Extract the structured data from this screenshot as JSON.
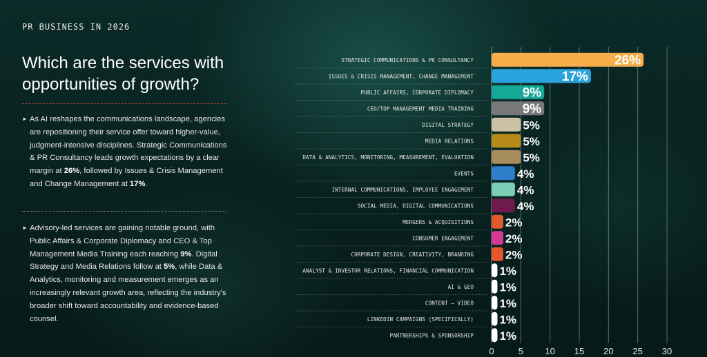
{
  "header": "PR BUSINESS IN 2026",
  "title": "Which are the services with opportunities of growth?",
  "paragraph1": {
    "t1": "As AI reshapes the communications landscape, agencies are repositioning their service offer toward higher-value, judgment-intensive disciplines. Strategic Communications & PR Consultancy leads growth expectations by a clear margin at ",
    "b1": "26%",
    "t2": ", followed by Issues & Crisis Management and Change Management at ",
    "b2": "17%",
    "t3": "."
  },
  "paragraph2": {
    "t1": "Advisory-led services are gaining notable ground, with Public Affairs & Corporate Diplomacy and CEO & Top Management Media Training each reaching ",
    "b1": "9%",
    "t2": ". Digital Strategy and Media Relations follow at ",
    "b2": "5%",
    "t3": ", while Data & Analytics, monitoring and measurement emerges as an increasingly relevant growth area, reflecting the industry's broader shift toward accountability and evidence-based counsel."
  },
  "chart_data": {
    "type": "bar",
    "orientation": "horizontal",
    "categories": [
      "STRATEGIC COMMUNICATIONS & PR CONSULTANCY",
      "ISSUES & CRISIS MANAGEMENT, CHANGE MANAGEMENT",
      "PUBLIC AFFAIRS, CORPORATE DIPLOMACY",
      "CEO/TOP MANAGEMENT MEDIA TRAINING",
      "DIGITAL STRATEGY",
      "MEDIA RELATIONS",
      "DATA & ANALYTICS, MONITORING, MEASUREMENT, EVALUATION",
      "EVENTS",
      "INTERNAL COMMUNICATIONS, EMPLOYEE ENGAGEMENT",
      "SOCIAL MEDIA, DIGITAL COMMUNICATIONS",
      "MERGERS & ACQUISITIONS",
      "CONSUMER ENGAGEMENT",
      "CORPORATE DESIGN, CREATIVITY, BRANDING",
      "ANALYST & INVESTOR RELATIONS, FINANCIAL COMMUNICATION",
      "AI & GEO",
      "CONTENT – VIDEO",
      "LINKEDIN CAMPAIGNS (SPECIFICALLY)",
      "PARTNERSHIPS & SPONSORSHIP"
    ],
    "values": [
      26,
      17,
      9,
      9,
      5,
      5,
      5,
      4,
      4,
      4,
      2,
      2,
      2,
      1,
      1,
      1,
      1,
      1
    ],
    "value_labels": [
      "26%",
      "17%",
      "9%",
      "9%",
      "5%",
      "5%",
      "5%",
      "4%",
      "4%",
      "4%",
      "2%",
      "2%",
      "2%",
      "1%",
      "1%",
      "1%",
      "1%",
      "1%"
    ],
    "colors": [
      "#f5ae4a",
      "#2aa3dd",
      "#14a898",
      "#77787a",
      "#ccc2a4",
      "#b58a18",
      "#a88d5e",
      "#2d7fca",
      "#7ccdb6",
      "#6e1a4c",
      "#e05a2e",
      "#d43a92",
      "#e2572b",
      "#ffffff",
      "#ffffff",
      "#ffffff",
      "#ffffff",
      "#ffffff"
    ],
    "xticks": [
      0,
      5,
      10,
      15,
      20,
      25,
      30
    ],
    "xlim": [
      0,
      30
    ],
    "grid": "vertical",
    "title": "",
    "xlabel": "",
    "ylabel": ""
  }
}
